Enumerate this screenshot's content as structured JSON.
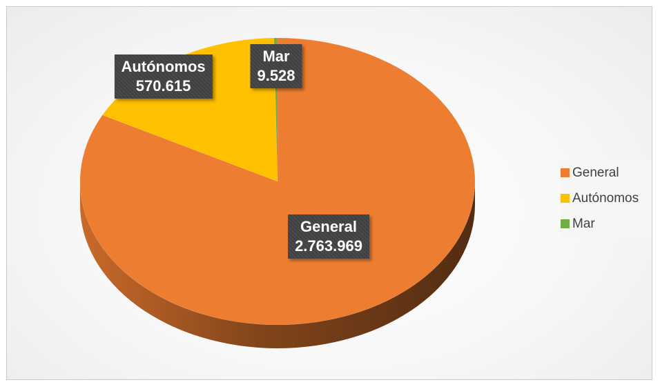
{
  "chart_data": {
    "type": "pie",
    "title": "",
    "series": [
      {
        "categories": [
          "General",
          "Autónomos",
          "Mar"
        ],
        "values": [
          2763969,
          570615,
          9528
        ],
        "value_labels": [
          "2.763.969",
          "570.615",
          "9.528"
        ]
      }
    ],
    "colors": [
      "#ED7D31",
      "#FFC000",
      "#70AD47"
    ],
    "legend": {
      "position": "right",
      "entries": [
        "General",
        "Autónomos",
        "Mar"
      ]
    },
    "style": "3d"
  }
}
